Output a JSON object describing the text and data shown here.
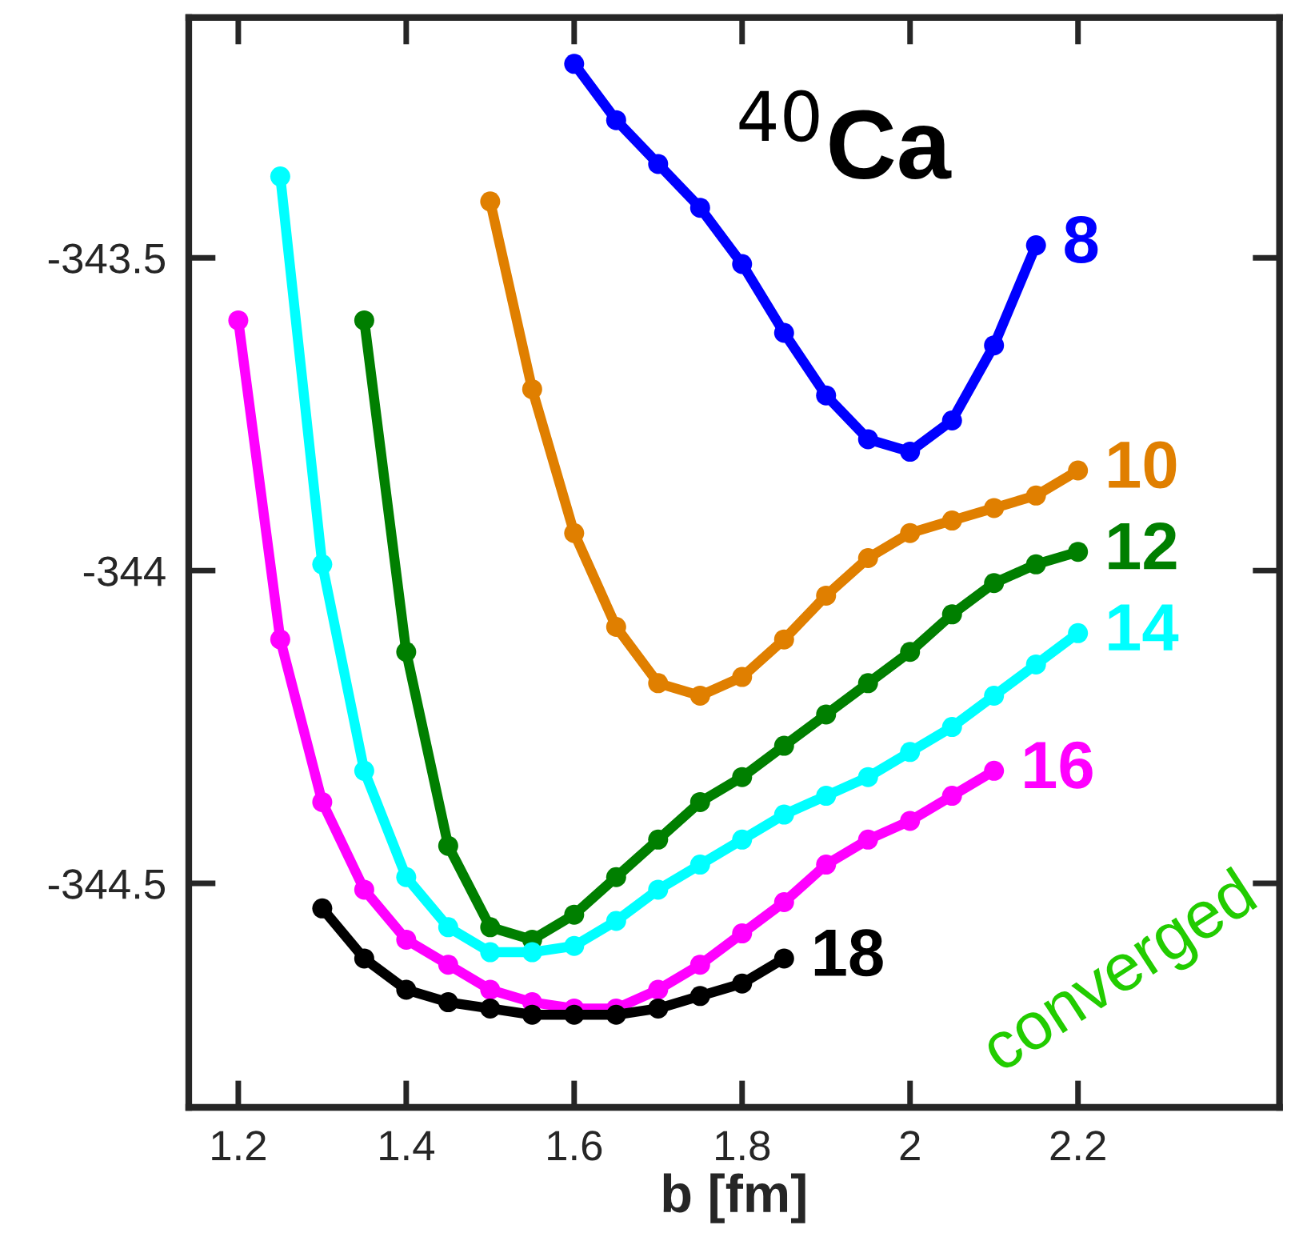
{
  "chart_data": {
    "type": "line",
    "xlabel": "b [fm]",
    "xlim": [
      1.141,
      2.44
    ],
    "ylim": [
      -344.858,
      -343.116
    ],
    "xticks": [
      {
        "value": 1.2,
        "label": "1.2"
      },
      {
        "value": 1.4,
        "label": "1.4"
      },
      {
        "value": 1.6,
        "label": "1.6"
      },
      {
        "value": 1.8,
        "label": "1.8"
      },
      {
        "value": 2.0,
        "label": "2"
      },
      {
        "value": 2.2,
        "label": "2.2"
      }
    ],
    "yticks": [
      {
        "value": -343.5,
        "label": "-343.5"
      },
      {
        "value": -344,
        "label": "-344"
      },
      {
        "value": -344.5,
        "label": "-344.5"
      }
    ],
    "grid": false,
    "legend": false,
    "marker": "circle",
    "line_style": "solid",
    "annotations": [
      "$^{40}$Ca",
      "converged"
    ],
    "series": [
      {
        "name": "8",
        "color": "#0000ff",
        "x": [
          1.6,
          1.65,
          1.7,
          1.75,
          1.8,
          1.85,
          1.9,
          1.95,
          2.0,
          2.05,
          2.1,
          2.15
        ],
        "values": [
          -343.19,
          -343.28,
          -343.35,
          -343.42,
          -343.51,
          -343.62,
          -343.72,
          -343.79,
          -343.81,
          -343.76,
          -343.64,
          -343.48
        ]
      },
      {
        "name": "10",
        "color": "#e07f00",
        "x": [
          1.5,
          1.55,
          1.6,
          1.65,
          1.7,
          1.75,
          1.8,
          1.85,
          1.9,
          1.95,
          2.0,
          2.05,
          2.1,
          2.15,
          2.2
        ],
        "values": [
          -343.41,
          -343.71,
          -343.94,
          -344.09,
          -344.18,
          -344.2,
          -344.17,
          -344.11,
          -344.04,
          -343.98,
          -343.94,
          -343.92,
          -343.9,
          -343.88,
          -343.84
        ]
      },
      {
        "name": "12",
        "color": "#007f00",
        "x": [
          1.35,
          1.4,
          1.45,
          1.5,
          1.55,
          1.6,
          1.65,
          1.7,
          1.75,
          1.8,
          1.85,
          1.9,
          1.95,
          2.0,
          2.05,
          2.1,
          2.15,
          2.2
        ],
        "values": [
          -343.6,
          -344.13,
          -344.44,
          -344.57,
          -344.59,
          -344.55,
          -344.49,
          -344.43,
          -344.37,
          -344.33,
          -344.28,
          -344.23,
          -344.18,
          -344.13,
          -344.07,
          -344.02,
          -343.99,
          -343.97
        ]
      },
      {
        "name": "14",
        "color": "#00ffff",
        "x": [
          1.25,
          1.3,
          1.35,
          1.4,
          1.45,
          1.5,
          1.55,
          1.6,
          1.65,
          1.7,
          1.75,
          1.8,
          1.85,
          1.9,
          1.95,
          2.0,
          2.05,
          2.1,
          2.15,
          2.2
        ],
        "values": [
          -343.37,
          -343.99,
          -344.32,
          -344.49,
          -344.57,
          -344.61,
          -344.61,
          -344.6,
          -344.56,
          -344.51,
          -344.47,
          -344.43,
          -344.39,
          -344.36,
          -344.33,
          -344.29,
          -344.25,
          -344.2,
          -344.15,
          -344.1
        ]
      },
      {
        "name": "16",
        "color": "#ff00ff",
        "x": [
          1.2,
          1.25,
          1.3,
          1.35,
          1.4,
          1.45,
          1.5,
          1.55,
          1.6,
          1.65,
          1.7,
          1.75,
          1.8,
          1.85,
          1.9,
          1.95,
          2.0,
          2.05,
          2.1
        ],
        "values": [
          -343.6,
          -344.11,
          -344.37,
          -344.51,
          -344.59,
          -344.63,
          -344.67,
          -344.69,
          -344.7,
          -344.7,
          -344.67,
          -344.63,
          -344.58,
          -344.53,
          -344.47,
          -344.43,
          -344.4,
          -344.36,
          -344.32
        ]
      },
      {
        "name": "18",
        "color": "#000000",
        "x": [
          1.3,
          1.35,
          1.4,
          1.45,
          1.5,
          1.55,
          1.6,
          1.65,
          1.7,
          1.75,
          1.8,
          1.85
        ],
        "values": [
          -344.54,
          -344.62,
          -344.67,
          -344.69,
          -344.7,
          -344.71,
          -344.71,
          -344.71,
          -344.7,
          -344.68,
          -344.66,
          -344.62
        ]
      }
    ]
  }
}
